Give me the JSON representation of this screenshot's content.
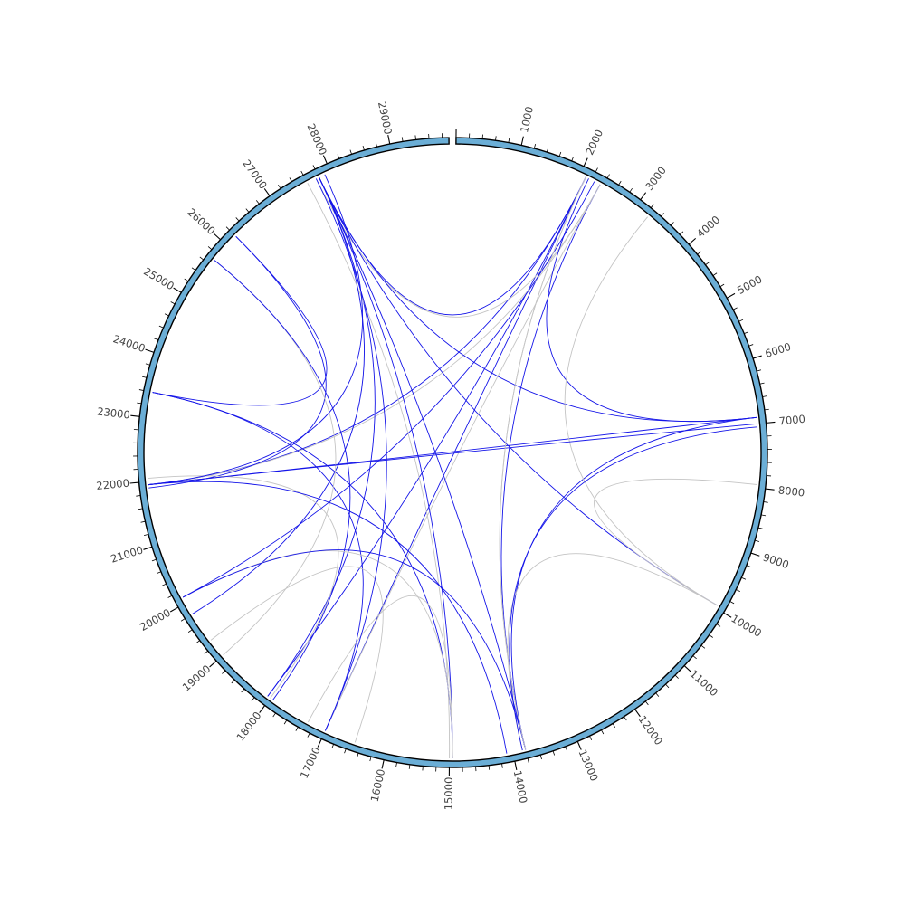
{
  "chart_data": {
    "type": "chord",
    "title": "",
    "ideogram": {
      "start": 0,
      "end": 29903,
      "fill": "#6baed6",
      "stroke": "#000000"
    },
    "ticks": {
      "major_every": 1000,
      "minor_every": 200,
      "labels": [
        "1000",
        "2000",
        "3000",
        "4000",
        "5000",
        "6000",
        "7000",
        "8000",
        "9000",
        "10000",
        "11000",
        "12000",
        "13000",
        "14000",
        "15000",
        "16000",
        "17000",
        "18000",
        "19000",
        "20000",
        "21000",
        "22000",
        "23000",
        "24000",
        "25000",
        "26000",
        "27000",
        "28000",
        "29000"
      ]
    },
    "link_colors": {
      "blue": "#1515e8",
      "gray": "#c4c4c4"
    },
    "links": [
      {
        "a": 2100,
        "b": 27800,
        "color": "blue"
      },
      {
        "a": 2100,
        "b": 17000,
        "color": "blue"
      },
      {
        "a": 2100,
        "b": 21950,
        "color": "blue"
      },
      {
        "a": 2100,
        "b": 18050,
        "color": "blue"
      },
      {
        "a": 2350,
        "b": 27750,
        "color": "gray"
      },
      {
        "a": 2350,
        "b": 21950,
        "color": "gray"
      },
      {
        "a": 2350,
        "b": 13800,
        "color": "blue"
      },
      {
        "a": 2350,
        "b": 17000,
        "color": "gray"
      },
      {
        "a": 2100,
        "b": 13800,
        "color": "gray"
      },
      {
        "a": 6900,
        "b": 27800,
        "color": "blue"
      },
      {
        "a": 6900,
        "b": 21950,
        "color": "blue"
      },
      {
        "a": 6900,
        "b": 13800,
        "color": "blue"
      },
      {
        "a": 6900,
        "b": 2150,
        "color": "blue"
      },
      {
        "a": 9950,
        "b": 27800,
        "color": "blue"
      },
      {
        "a": 9950,
        "b": 7950,
        "color": "gray"
      },
      {
        "a": 9950,
        "b": 3250,
        "color": "gray"
      },
      {
        "a": 9950,
        "b": 13850,
        "color": "gray"
      },
      {
        "a": 27800,
        "b": 14950,
        "color": "blue"
      },
      {
        "a": 27800,
        "b": 13800,
        "color": "blue"
      },
      {
        "a": 27800,
        "b": 18050,
        "color": "blue"
      },
      {
        "a": 27600,
        "b": 15000,
        "color": "gray"
      },
      {
        "a": 27800,
        "b": 19800,
        "color": "blue"
      },
      {
        "a": 23400,
        "b": 26200,
        "color": "blue"
      },
      {
        "a": 23400,
        "b": 14950,
        "color": "blue"
      },
      {
        "a": 23400,
        "b": 17000,
        "color": "blue"
      },
      {
        "a": 26200,
        "b": 21900,
        "color": "blue"
      },
      {
        "a": 25700,
        "b": 19000,
        "color": "gray"
      },
      {
        "a": 25700,
        "b": 17950,
        "color": "blue"
      },
      {
        "a": 22050,
        "b": 18000,
        "color": "gray"
      },
      {
        "a": 21950,
        "b": 14100,
        "color": "blue"
      },
      {
        "a": 21950,
        "b": 7000,
        "color": "blue"
      },
      {
        "a": 20100,
        "b": 14950,
        "color": "gray"
      },
      {
        "a": 20100,
        "b": 2250,
        "color": "blue"
      },
      {
        "a": 20100,
        "b": 13800,
        "color": "blue"
      },
      {
        "a": 13850,
        "b": 7050,
        "color": "blue"
      },
      {
        "a": 13800,
        "b": 2100,
        "color": "gray"
      },
      {
        "a": 14950,
        "b": 17300,
        "color": "gray"
      },
      {
        "a": 16500,
        "b": 19300,
        "color": "gray"
      },
      {
        "a": 21950,
        "b": 27900,
        "color": "blue"
      },
      {
        "a": 17000,
        "b": 27750,
        "color": "blue"
      }
    ]
  }
}
